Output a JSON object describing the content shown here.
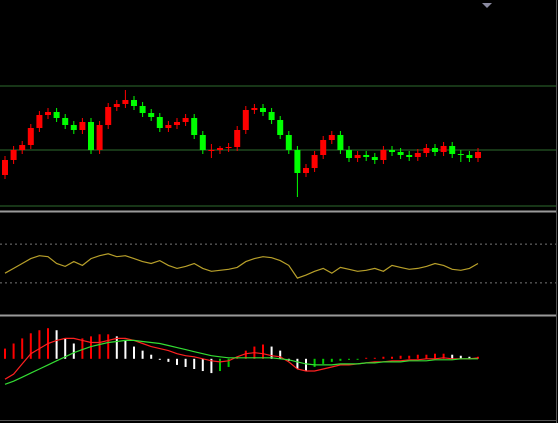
{
  "chart_data": [
    {
      "type": "candlestick",
      "ylim": [
        0,
        210
      ],
      "up_color": "#ff0000",
      "down_color": "#00ff00",
      "levels": [
        124,
        60,
        4
      ],
      "level_color": "#2e6b2e",
      "open": [
        35,
        50,
        60,
        65,
        82,
        95,
        98,
        92,
        85,
        80,
        88,
        60,
        85,
        103,
        106,
        110,
        104,
        97,
        93,
        82,
        85,
        88,
        92,
        75,
        60,
        60,
        62,
        63,
        80,
        100,
        102,
        98,
        90,
        75,
        60,
        37,
        42,
        55,
        70,
        75,
        60,
        52,
        55,
        53,
        50,
        60,
        58,
        55,
        53,
        57,
        62,
        58,
        64,
        56,
        55,
        52
      ],
      "high": [
        54,
        64,
        69,
        86,
        99,
        102,
        102,
        96,
        89,
        92,
        92,
        89,
        107,
        110,
        120,
        114,
        108,
        101,
        97,
        89,
        92,
        96,
        96,
        79,
        66,
        64,
        67,
        84,
        104,
        106,
        106,
        102,
        94,
        79,
        64,
        46,
        59,
        74,
        79,
        79,
        64,
        59,
        59,
        57,
        64,
        64,
        62,
        59,
        61,
        66,
        66,
        68,
        68,
        60,
        59,
        62
      ],
      "low": [
        31,
        46,
        56,
        61,
        78,
        91,
        88,
        81,
        76,
        76,
        56,
        56,
        81,
        99,
        102,
        100,
        93,
        89,
        78,
        78,
        81,
        84,
        71,
        56,
        52,
        56,
        58,
        59,
        76,
        96,
        94,
        86,
        71,
        56,
        13,
        33,
        38,
        51,
        66,
        56,
        48,
        48,
        49,
        46,
        46,
        54,
        51,
        49,
        49,
        53,
        54,
        54,
        52,
        48,
        48,
        48
      ],
      "close": [
        50,
        60,
        65,
        82,
        95,
        98,
        92,
        85,
        80,
        88,
        60,
        85,
        103,
        106,
        110,
        104,
        97,
        93,
        82,
        85,
        88,
        92,
        75,
        60,
        60,
        62,
        63,
        80,
        100,
        102,
        98,
        90,
        75,
        60,
        37,
        42,
        55,
        70,
        75,
        60,
        52,
        55,
        53,
        50,
        60,
        58,
        55,
        53,
        57,
        62,
        58,
        64,
        56,
        55,
        52,
        58
      ]
    },
    {
      "type": "line",
      "ylim": [
        0,
        100
      ],
      "levels": [
        70,
        30
      ],
      "series": [
        {
          "color": "#b8a02a",
          "values": [
            40,
            45,
            50,
            55,
            58,
            57,
            50,
            47,
            52,
            48,
            55,
            58,
            60,
            57,
            58,
            55,
            52,
            50,
            53,
            48,
            45,
            47,
            50,
            45,
            42,
            43,
            44,
            46,
            52,
            55,
            57,
            56,
            53,
            48,
            35,
            38,
            42,
            45,
            40,
            46,
            44,
            42,
            43,
            45,
            42,
            48,
            46,
            44,
            45,
            47,
            50,
            48,
            44,
            43,
            45,
            50
          ]
        }
      ]
    },
    {
      "type": "macd",
      "ylim": [
        -60,
        40
      ],
      "rise_pos_color": "#ff0000",
      "rise_neg_color": "#00cc00",
      "fall_color": "#ffffff",
      "histogram": [
        10,
        15,
        20,
        25,
        28,
        30,
        28,
        20,
        15,
        20,
        22,
        24,
        24,
        22,
        18,
        12,
        8,
        4,
        0,
        -3,
        -6,
        -8,
        -10,
        -12,
        -14,
        -12,
        -8,
        2,
        8,
        12,
        14,
        12,
        8,
        -2,
        -10,
        -12,
        -8,
        -5,
        -3,
        -2,
        -1,
        0,
        1,
        1,
        2,
        2,
        3,
        3,
        4,
        4,
        5,
        5,
        4,
        3,
        2,
        2
      ],
      "series": [
        {
          "color": "#ff2020",
          "values": [
            -20,
            -15,
            -5,
            5,
            10,
            15,
            18,
            20,
            20,
            18,
            16,
            16,
            18,
            20,
            20,
            18,
            15,
            12,
            10,
            8,
            5,
            3,
            2,
            0,
            -2,
            -3,
            -2,
            2,
            5,
            6,
            5,
            3,
            2,
            -3,
            -10,
            -12,
            -12,
            -10,
            -8,
            -6,
            -6,
            -5,
            -4,
            -3,
            -3,
            -2,
            -2,
            -1,
            -1,
            0,
            0,
            1,
            0,
            0,
            0,
            1
          ]
        },
        {
          "color": "#33dd33",
          "values": [
            -25,
            -22,
            -18,
            -14,
            -10,
            -6,
            -2,
            2,
            6,
            9,
            12,
            14,
            16,
            17,
            18,
            18,
            17,
            16,
            15,
            13,
            11,
            9,
            7,
            5,
            3,
            2,
            1,
            1,
            1,
            1,
            1,
            1,
            0,
            -1,
            -3,
            -5,
            -6,
            -6,
            -6,
            -5,
            -5,
            -5,
            -4,
            -4,
            -3,
            -3,
            -3,
            -2,
            -2,
            -2,
            -1,
            -1,
            -1,
            0,
            0,
            0
          ]
        }
      ]
    }
  ]
}
